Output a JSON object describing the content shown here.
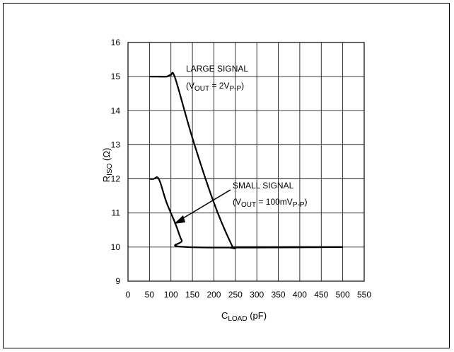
{
  "chart_data": {
    "type": "line",
    "xlabel": {
      "main": "C",
      "sub": "LOAD",
      "unit": " (pF)"
    },
    "ylabel": {
      "main": "R",
      "sub": "ISO",
      "unit": " (Ω)"
    },
    "xlim": [
      0,
      550
    ],
    "ylim": [
      9,
      16
    ],
    "xticks": [
      0,
      50,
      100,
      150,
      200,
      250,
      300,
      350,
      400,
      450,
      500,
      550
    ],
    "yticks": [
      9,
      10,
      11,
      12,
      13,
      14,
      15,
      16
    ],
    "grid": true,
    "series": [
      {
        "x": [
          50,
          70,
          90,
          100,
          110,
          150,
          200,
          240,
          250,
          260,
          500
        ],
        "y": [
          15.0,
          15.0,
          15.0,
          15.05,
          14.95,
          13.2,
          11.3,
          10.1,
          9.97,
          10.0,
          10.0
        ]
      },
      {
        "x": [
          50,
          60,
          68,
          75,
          90,
          110,
          125,
          140,
          500
        ],
        "y": [
          12.0,
          12.0,
          12.05,
          11.9,
          11.3,
          10.7,
          10.2,
          10.0,
          10.0
        ]
      }
    ],
    "annotations": [
      {
        "line1": "LARGE SIGNAL",
        "line2": {
          "pre": "(V",
          "sub1": "OUT",
          "mid": " = 2V",
          "sub2": "P-P",
          "post": ")"
        }
      },
      {
        "line1": "SMALL SIGNAL",
        "line2": {
          "pre": "(V",
          "sub1": "OUT",
          "mid": " = 100mV",
          "sub2": "P-P",
          "post": ")"
        }
      }
    ]
  }
}
